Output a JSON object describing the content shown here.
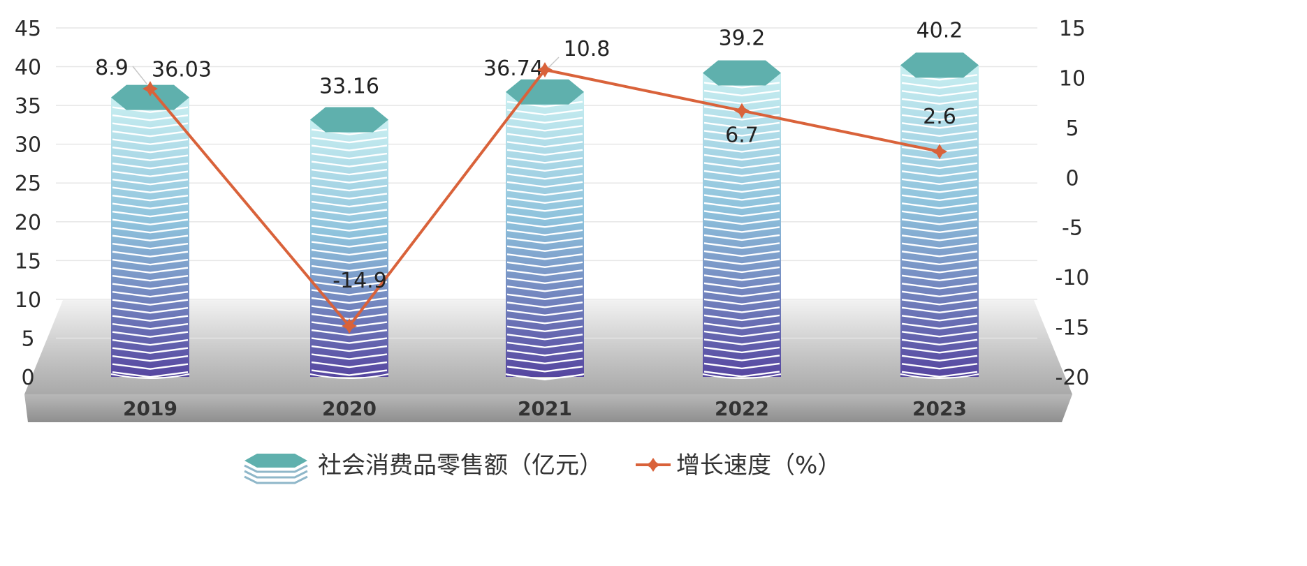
{
  "chart_data": {
    "type": "bar+line",
    "categories": [
      "2019",
      "2020",
      "2021",
      "2022",
      "2023"
    ],
    "series": [
      {
        "name": "社会消费品零售额（亿元）",
        "type": "bar",
        "axis": "left",
        "values": [
          36.03,
          33.16,
          36.74,
          39.2,
          40.2
        ],
        "labels": [
          "36.03",
          "33.16",
          "36.74",
          "39.2",
          "40.2"
        ]
      },
      {
        "name": "增长速度（%）",
        "type": "line",
        "axis": "right",
        "values": [
          8.9,
          -14.9,
          10.8,
          6.7,
          2.6
        ],
        "labels": [
          "8.9",
          "-14.9",
          "10.8",
          "6.7",
          "2.6"
        ]
      }
    ],
    "y_left": {
      "min": 0,
      "max": 45,
      "ticks": [
        "0",
        "5",
        "10",
        "15",
        "20",
        "25",
        "30",
        "35",
        "40",
        "45"
      ]
    },
    "y_right": {
      "min": -20,
      "max": 15,
      "ticks": [
        "-20",
        "-15",
        "-10",
        "-5",
        "0",
        "5",
        "10",
        "15"
      ]
    },
    "legend_position": "bottom",
    "colors": {
      "bar_top": "#5fb0ad",
      "bar_light": "#d9f3f4",
      "bar_dark": "#5a4aa0",
      "line": "#d9623a",
      "floor": "#b5b5b5"
    }
  }
}
